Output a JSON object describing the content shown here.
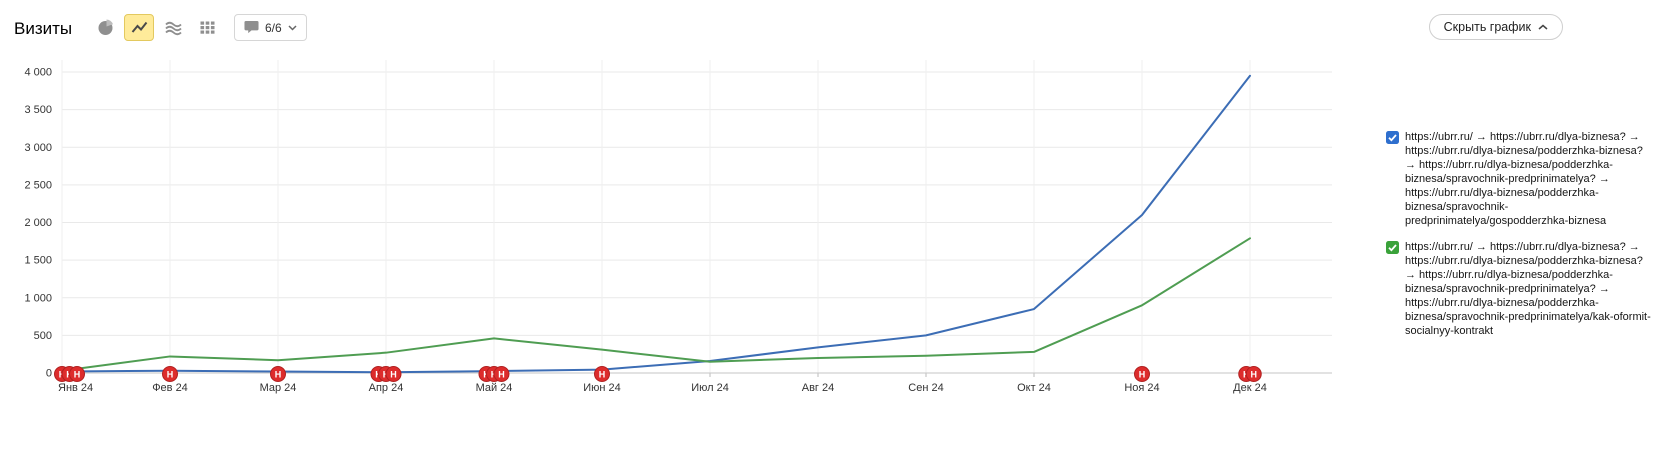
{
  "header": {
    "title": "Визиты",
    "toolbar": {
      "chart_types": [
        "pie",
        "line",
        "stacked-areas",
        "columns"
      ],
      "selected_type": "line",
      "segments_counter": "6/6"
    },
    "hide_chart_label": "Скрыть график"
  },
  "colors": {
    "series_blue": "#3c6db5",
    "series_green": "#4f9d52",
    "checkbox_blue": "#2e6fce",
    "checkbox_green": "#3aa23a",
    "annotation_red": "#dd2c2c",
    "annotation_border": "#b02020",
    "selected_icon_bg": "#ffeb9a",
    "gridline": "#e9e9e9",
    "axis_line": "#c6c6c6"
  },
  "legend": {
    "items": [
      {
        "color": "#2e6fce",
        "checked": true,
        "label": "https://ubrr.ru/ → https://ubrr.ru/dlya-biznesa? → https://ubrr.ru/dlya-biznesa/podderzhka-biznesa? → https://ubrr.ru/dlya-biznesa/podderzhka-biznesa/spravochnik-predprinimatelya? → https://ubrr.ru/dlya-biznesa/podderzhka-biznesa/spravochnik-predprinimatelya/gospodderzhka-biznesa"
      },
      {
        "color": "#3aa23a",
        "checked": true,
        "label": "https://ubrr.ru/ → https://ubrr.ru/dlya-biznesa? → https://ubrr.ru/dlya-biznesa/podderzhka-biznesa? → https://ubrr.ru/dlya-biznesa/podderzhka-biznesa/spravochnik-predprinimatelya? → https://ubrr.ru/dlya-biznesa/podderzhka-biznesa/spravochnik-predprinimatelya/kak-oformit-socialnyy-kontrakt"
      }
    ]
  },
  "chart_data": {
    "type": "line",
    "title": "Визиты",
    "categories": [
      "Янв 24",
      "Фев 24",
      "Мар 24",
      "Апр 24",
      "Май 24",
      "Июн 24",
      "Июл 24",
      "Авг 24",
      "Сен 24",
      "Окт 24",
      "Ноя 24",
      "Дек 24"
    ],
    "series": [
      {
        "name": "gospodderzhka-biznesa",
        "color": "#3c6db5",
        "values": [
          20,
          30,
          20,
          10,
          25,
          45,
          160,
          340,
          500,
          850,
          2100,
          3950
        ]
      },
      {
        "name": "kak-oformit-socialnyy-kontrakt",
        "color": "#4f9d52",
        "values": [
          30,
          220,
          170,
          270,
          460,
          310,
          150,
          200,
          230,
          280,
          900,
          1790
        ]
      }
    ],
    "xlabel": "",
    "ylabel": "",
    "ylim": [
      0,
      4000
    ],
    "yticks": [
      0,
      500,
      1000,
      1500,
      2000,
      2500,
      3000,
      3500,
      4000
    ],
    "ytick_labels": [
      "0",
      "500",
      "1 000",
      "1 500",
      "2 000",
      "2 500",
      "3 000",
      "3 500",
      "4 000"
    ],
    "grid": true,
    "legend_position": "right",
    "annotations": {
      "letter": "Н",
      "markers": [
        {
          "category": "Янв 24",
          "index": 0,
          "count": 3
        },
        {
          "category": "Фев 24",
          "index": 1,
          "count": 1
        },
        {
          "category": "Мар 24",
          "index": 2,
          "count": 1
        },
        {
          "category": "Апр 24",
          "index": 3,
          "count": 3
        },
        {
          "category": "Май 24",
          "index": 4,
          "count": 3
        },
        {
          "category": "Июн 24",
          "index": 5,
          "count": 1
        },
        {
          "category": "Ноя 24",
          "index": 10,
          "count": 1
        },
        {
          "category": "Дек 24",
          "index": 11,
          "count": 2
        }
      ]
    }
  }
}
